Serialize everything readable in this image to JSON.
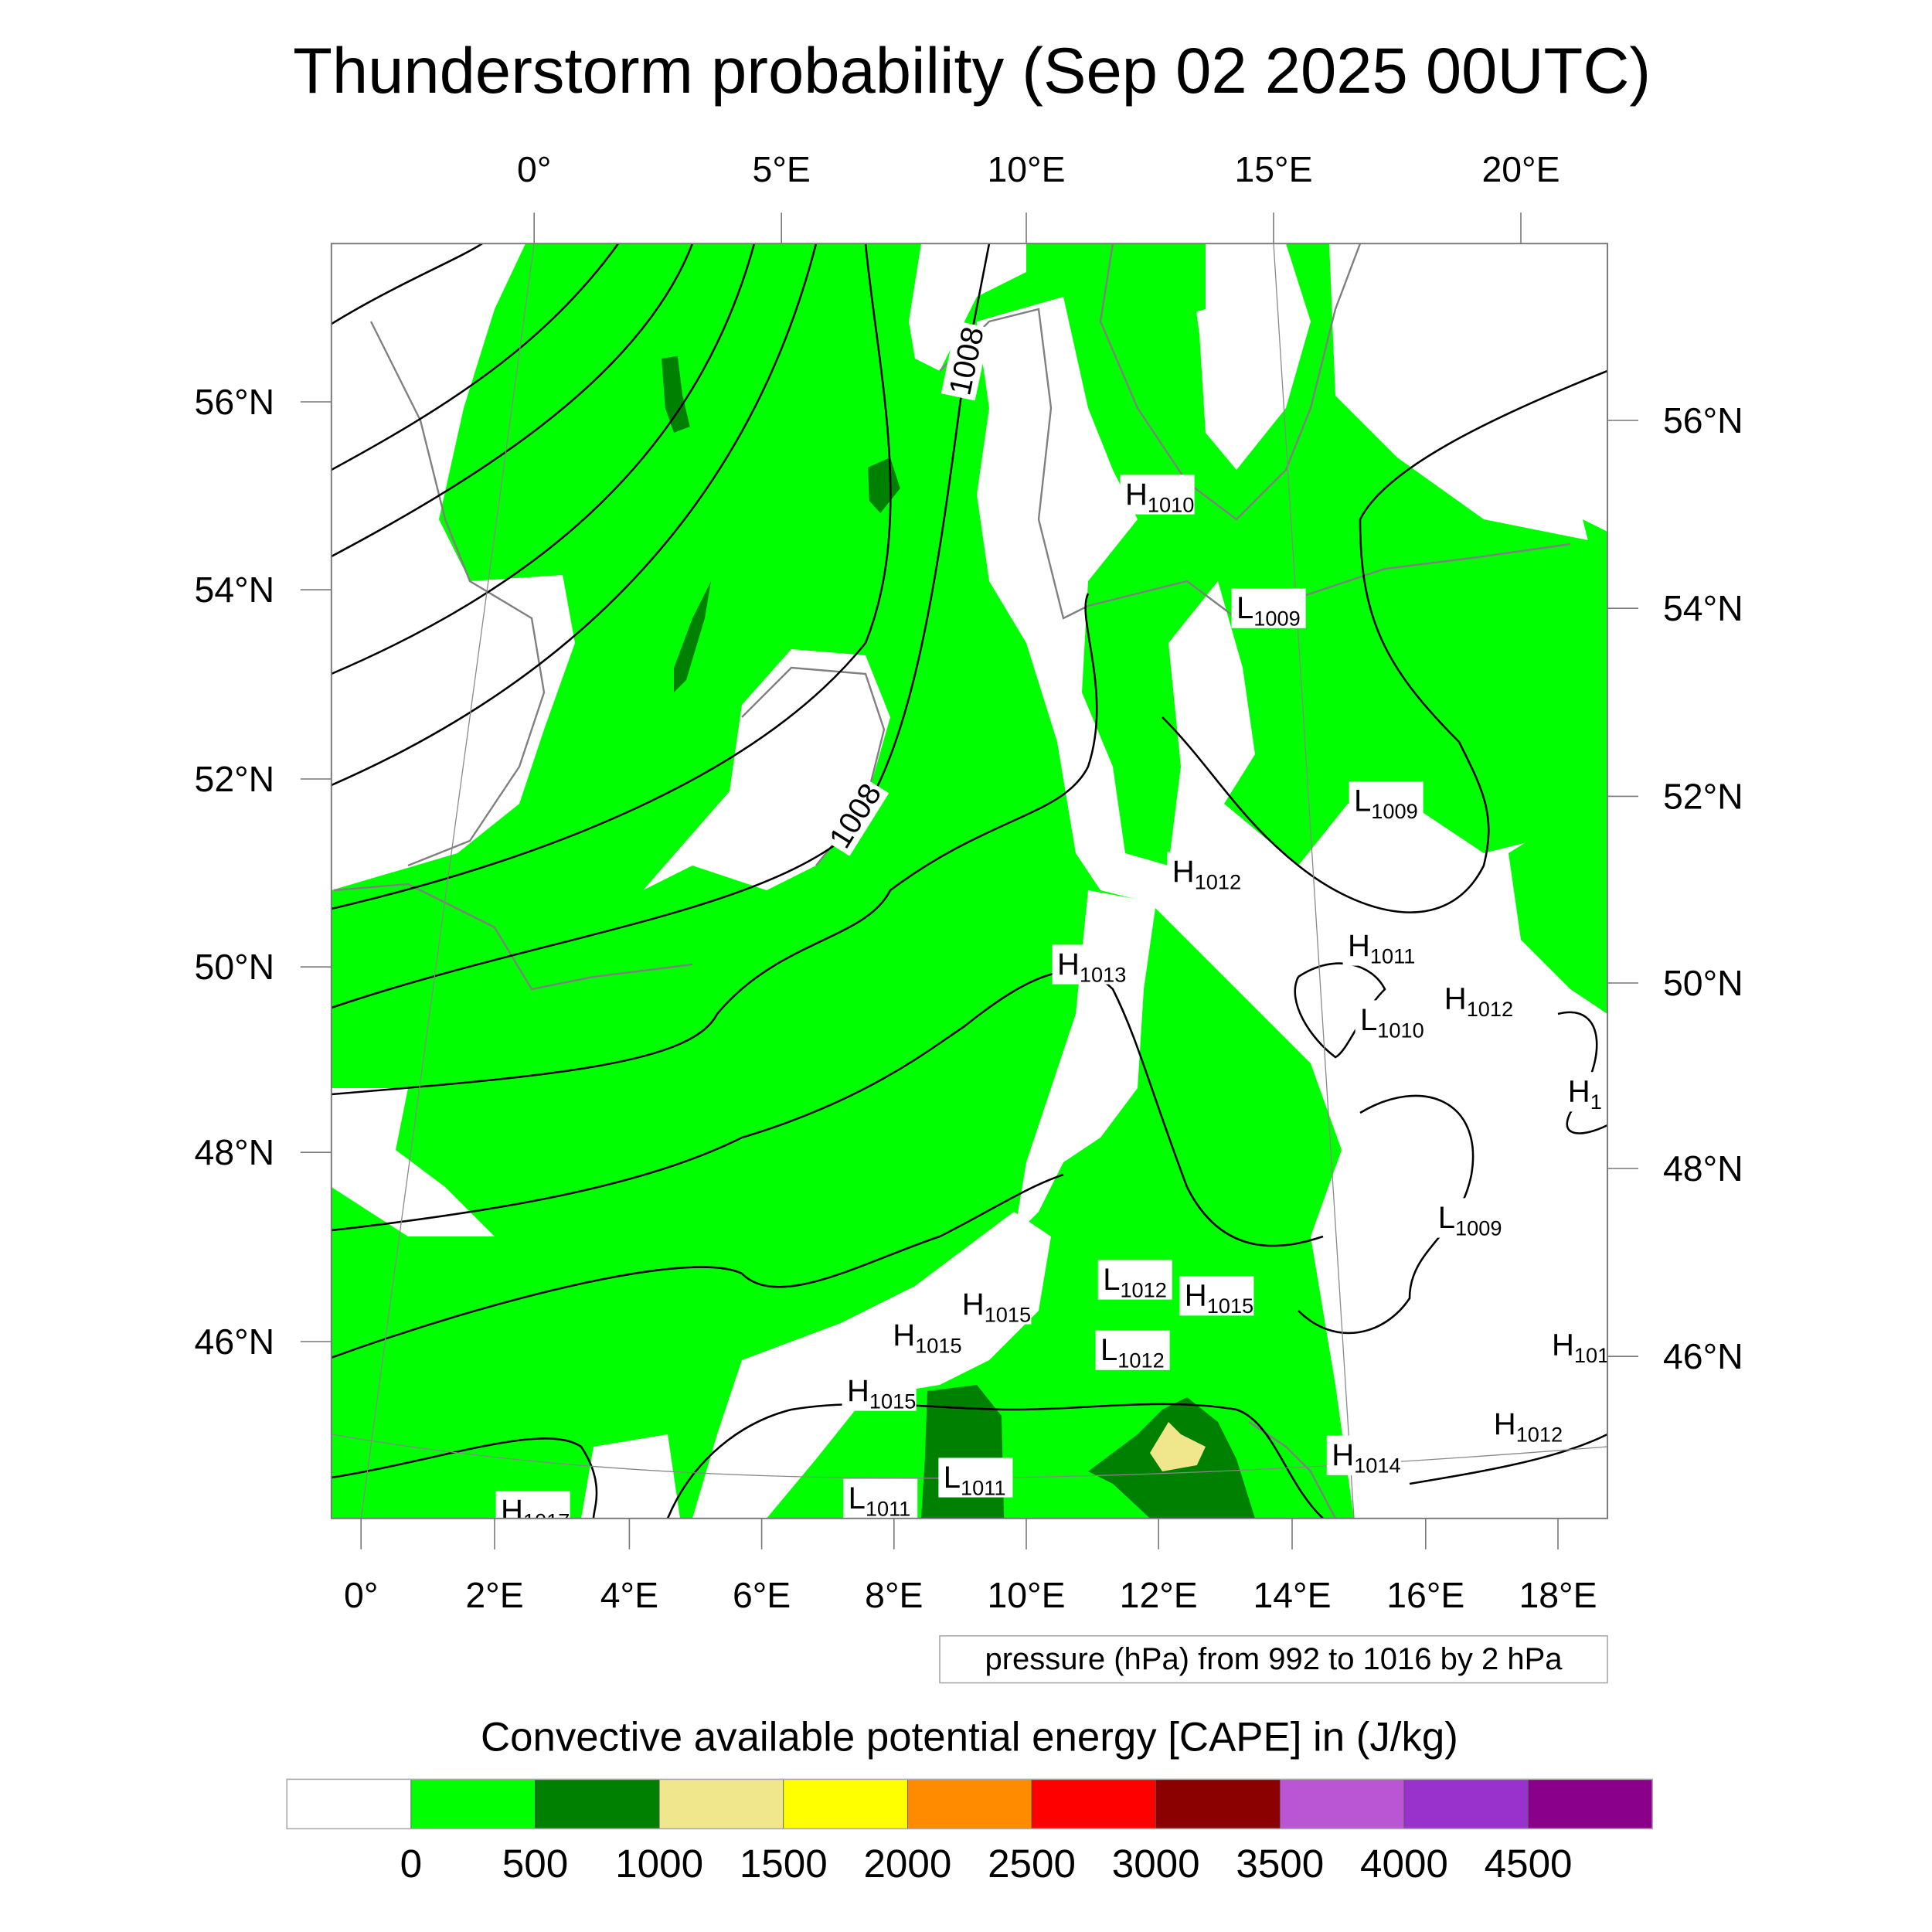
{
  "title": "Thunderstorm probability (Sep 02 2025 00UTC)",
  "top_axis": [
    "0°",
    "5°E",
    "10°E",
    "15°E",
    "20°E"
  ],
  "bottom_axis": [
    "0°",
    "2°E",
    "4°E",
    "6°E",
    "8°E",
    "10°E",
    "12°E",
    "14°E",
    "16°E",
    "18°E"
  ],
  "left_axis": [
    "56°N",
    "54°N",
    "52°N",
    "50°N",
    "48°N",
    "46°N"
  ],
  "right_axis": [
    "56°N",
    "54°N",
    "52°N",
    "50°N",
    "48°N",
    "46°N"
  ],
  "contour_note": "pressure (hPa) from 992 to 1016 by 2 hPa",
  "contour_labels": [
    "1008",
    "1008"
  ],
  "pressure_centers": [
    {
      "t": "H",
      "v": "1010"
    },
    {
      "t": "L",
      "v": "1009"
    },
    {
      "t": "L",
      "v": "1009"
    },
    {
      "t": "H",
      "v": "1012"
    },
    {
      "t": "H",
      "v": "1011"
    },
    {
      "t": "H",
      "v": "1013"
    },
    {
      "t": "L",
      "v": "1010"
    },
    {
      "t": "H",
      "v": "1012"
    },
    {
      "t": "H",
      "v": "1"
    },
    {
      "t": "L",
      "v": "1009"
    },
    {
      "t": "L",
      "v": "1012"
    },
    {
      "t": "H",
      "v": "1015"
    },
    {
      "t": "H",
      "v": "1015"
    },
    {
      "t": "H",
      "v": "1015"
    },
    {
      "t": "L",
      "v": "1012"
    },
    {
      "t": "H",
      "v": "101"
    },
    {
      "t": "H",
      "v": "1015"
    },
    {
      "t": "H",
      "v": "1012"
    },
    {
      "t": "H",
      "v": "1014"
    },
    {
      "t": "L",
      "v": "1011"
    },
    {
      "t": "L",
      "v": "1011"
    },
    {
      "t": "H",
      "v": "1017"
    }
  ],
  "colorbar": {
    "title": "Convective available potential energy [CAPE] in (J/kg)",
    "colors": [
      "#ffffff",
      "#00ff00",
      "#008000",
      "#f0e68c",
      "#ffff00",
      "#ff8c00",
      "#ff0000",
      "#8b0000",
      "#ba55d3",
      "#9932cc",
      "#8b008b"
    ],
    "labels": [
      "0",
      "500",
      "1000",
      "1500",
      "2000",
      "2500",
      "3000",
      "3500",
      "4000",
      "4500"
    ]
  }
}
